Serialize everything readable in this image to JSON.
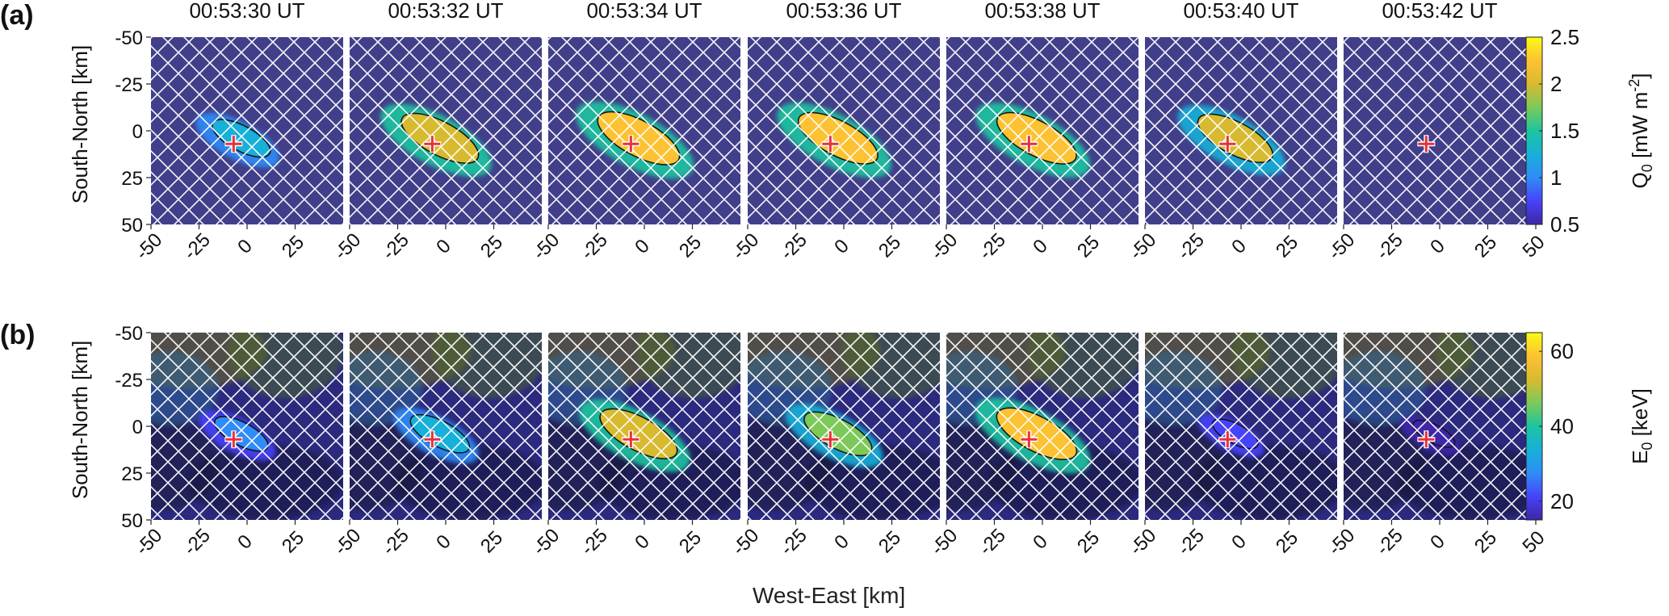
{
  "chart_data": {
    "type": "heatmap",
    "panel_labels": [
      "(a)",
      "(b)"
    ],
    "times": [
      "00:53:30 UT",
      "00:53:32 UT",
      "00:53:34 UT",
      "00:53:36 UT",
      "00:53:38 UT",
      "00:53:40 UT",
      "00:53:42 UT"
    ],
    "xlabel": "West-East [km]",
    "ylabel": "South-North [km]",
    "xlim": [
      -50,
      50
    ],
    "ylim": [
      -50,
      50
    ],
    "x_ticks": [
      "-50",
      "-25",
      "0",
      "25",
      "50"
    ],
    "y_ticks": [
      "-50",
      "-25",
      "0",
      "25",
      "50"
    ],
    "marker": {
      "symbol": "+",
      "color": "#e8313a",
      "x": -7,
      "y": 7
    },
    "rows": [
      {
        "label": "(a)",
        "colorbar_label": "Q",
        "colorbar_sub": "0",
        "colorbar_unit_text": " [mW m",
        "colorbar_unit_sup": "-2",
        "colorbar_unit_end": "]",
        "clim": [
          0.5,
          2.5
        ],
        "colorbar_ticks": [
          "2.5",
          "2",
          "1.5",
          "1",
          "0.5"
        ],
        "panel_peak_values": [
          1.3,
          2.1,
          2.3,
          2.2,
          2.2,
          2.0,
          0.5
        ]
      },
      {
        "label": "(b)",
        "colorbar_label": "E",
        "colorbar_sub": "0",
        "colorbar_unit_text": " [keV]",
        "colorbar_unit_sup": "",
        "colorbar_unit_end": "",
        "clim": [
          15,
          65
        ],
        "colorbar_ticks": [
          "60",
          "40",
          "20"
        ],
        "panel_peak_values": [
          30,
          36,
          55,
          45,
          58,
          22,
          18
        ]
      }
    ],
    "colormap": [
      "#3e26a8",
      "#4743f8",
      "#2f8cf8",
      "#16b0d8",
      "#1dc4a0",
      "#7cc95a",
      "#d8ba30",
      "#fdc233",
      "#f9fb14"
    ],
    "hatch": "white diagonal crosshatch over masked area",
    "grid": false
  }
}
